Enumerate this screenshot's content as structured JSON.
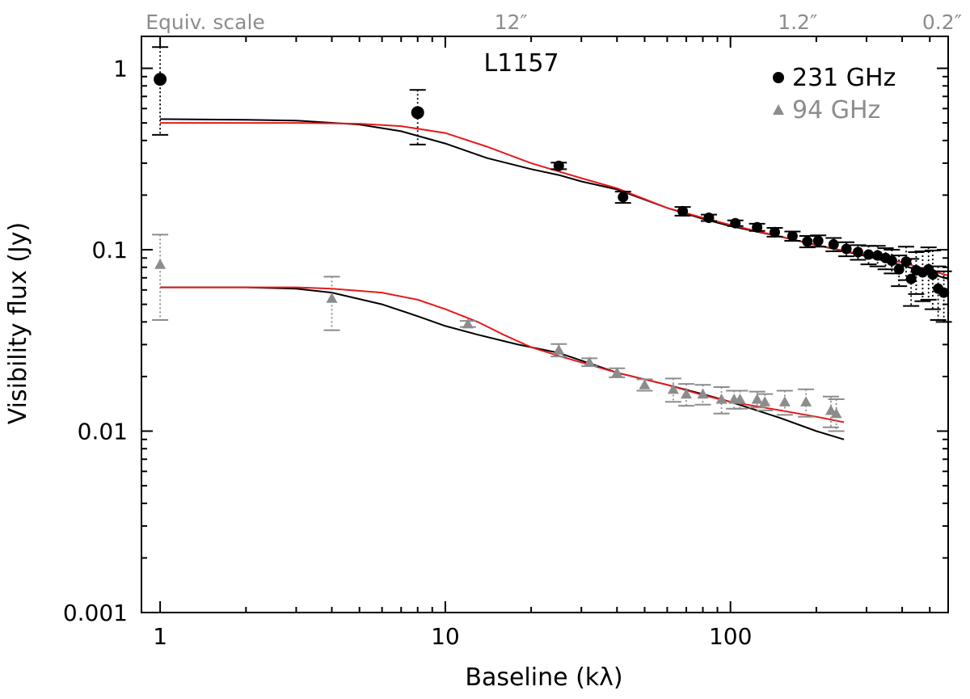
{
  "chart_data": {
    "type": "scatter",
    "title": "L1157",
    "xlabel": "Baseline (kλ)",
    "ylabel": "Visibility flux (Jy)",
    "xscale": "log",
    "yscale": "log",
    "xlim": [
      0.86,
      580
    ],
    "ylim": [
      0.001,
      1.5
    ],
    "x_ticks": [
      {
        "value": 1,
        "label": "1"
      },
      {
        "value": 10,
        "label": "10"
      },
      {
        "value": 100,
        "label": "100"
      }
    ],
    "y_ticks": [
      {
        "value": 0.001,
        "label": "0.001"
      },
      {
        "value": 0.01,
        "label": "0.01"
      },
      {
        "value": 0.1,
        "label": "0.1"
      },
      {
        "value": 1,
        "label": "1"
      }
    ],
    "top_axis": {
      "label": "Equiv. scale",
      "ticks": [
        {
          "value": 17,
          "label": "12″"
        },
        {
          "value": 172,
          "label": "1.2″"
        },
        {
          "value": 520,
          "label": "0.2″"
        }
      ]
    },
    "legend_position": "top-right",
    "colors": {
      "series_231": "#000000",
      "series_94": "#8c8c8c",
      "model_red": "#e41a1c",
      "model_black": "#000000"
    },
    "series": [
      {
        "name": "231 GHz",
        "marker": "circle",
        "x": [
          1,
          8,
          25,
          42,
          68,
          84,
          104,
          124,
          143,
          165,
          186,
          203,
          230,
          255,
          280,
          305,
          328,
          350,
          368,
          390,
          413,
          430,
          448,
          472,
          495,
          512,
          535,
          560
        ],
        "y": [
          0.87,
          0.57,
          0.29,
          0.195,
          0.163,
          0.15,
          0.14,
          0.133,
          0.125,
          0.119,
          0.111,
          0.112,
          0.107,
          0.101,
          0.097,
          0.094,
          0.093,
          0.09,
          0.087,
          0.078,
          0.086,
          0.069,
          0.077,
          0.075,
          0.078,
          0.073,
          0.061,
          0.058
        ],
        "err_low": [
          0.44,
          0.19,
          0.012,
          0.014,
          0.009,
          0.006,
          0.005,
          0.006,
          0.007,
          0.007,
          0.008,
          0.008,
          0.009,
          0.009,
          0.009,
          0.011,
          0.012,
          0.012,
          0.013,
          0.015,
          0.018,
          0.02,
          0.02,
          0.023,
          0.025,
          0.026,
          0.02,
          0.018
        ],
        "err_high": [
          0.44,
          0.19,
          0.012,
          0.014,
          0.009,
          0.006,
          0.005,
          0.006,
          0.007,
          0.007,
          0.008,
          0.008,
          0.009,
          0.009,
          0.009,
          0.011,
          0.012,
          0.012,
          0.013,
          0.015,
          0.018,
          0.02,
          0.02,
          0.023,
          0.025,
          0.026,
          0.02,
          0.018
        ]
      },
      {
        "name": "94 GHz",
        "marker": "triangle",
        "x": [
          1,
          4,
          12,
          25,
          32,
          40,
          50,
          63,
          70,
          80,
          93,
          103,
          108,
          124,
          132,
          155,
          184,
          225,
          235
        ],
        "y": [
          0.083,
          0.054,
          0.039,
          0.028,
          0.024,
          0.021,
          0.018,
          0.017,
          0.016,
          0.016,
          0.015,
          0.015,
          0.015,
          0.015,
          0.0145,
          0.0145,
          0.0145,
          0.013,
          0.0125
        ],
        "err_low": [
          0.042,
          0.018,
          0.0015,
          0.0022,
          0.0012,
          0.0012,
          0.0013,
          0.0025,
          0.0022,
          0.002,
          0.0025,
          0.0017,
          0.0017,
          0.0015,
          0.0015,
          0.0022,
          0.0025,
          0.0025,
          0.0025
        ],
        "err_high": [
          0.038,
          0.017,
          0.0015,
          0.0022,
          0.0012,
          0.0012,
          0.0013,
          0.0025,
          0.0022,
          0.002,
          0.0025,
          0.0017,
          0.0017,
          0.0015,
          0.0015,
          0.0022,
          0.0025,
          0.0025,
          0.0025
        ]
      }
    ],
    "models": [
      {
        "name": "model-231-black",
        "color": "black",
        "x": [
          1,
          2,
          3,
          5,
          7,
          10,
          14,
          20,
          25,
          30,
          40,
          60,
          80,
          100,
          150,
          200,
          300,
          400,
          500,
          580
        ],
        "y": [
          0.525,
          0.52,
          0.515,
          0.49,
          0.45,
          0.385,
          0.32,
          0.278,
          0.258,
          0.238,
          0.215,
          0.17,
          0.148,
          0.135,
          0.118,
          0.106,
          0.092,
          0.082,
          0.074,
          0.069
        ]
      },
      {
        "name": "model-231-red",
        "color": "red",
        "x": [
          1,
          2,
          3,
          5,
          7,
          10,
          14,
          20,
          25,
          30,
          40,
          60,
          80,
          100,
          150,
          200,
          300,
          400,
          500,
          580
        ],
        "y": [
          0.5,
          0.5,
          0.5,
          0.495,
          0.48,
          0.44,
          0.37,
          0.3,
          0.27,
          0.248,
          0.218,
          0.17,
          0.15,
          0.137,
          0.118,
          0.106,
          0.093,
          0.085,
          0.077,
          0.072
        ]
      },
      {
        "name": "model-94-black",
        "color": "black",
        "x": [
          1,
          2,
          3,
          4,
          6,
          8,
          10,
          13,
          18,
          25,
          40,
          60,
          80,
          100,
          150,
          200,
          250
        ],
        "y": [
          0.062,
          0.062,
          0.061,
          0.058,
          0.05,
          0.043,
          0.038,
          0.034,
          0.03,
          0.027,
          0.021,
          0.018,
          0.016,
          0.0145,
          0.0118,
          0.01,
          0.009
        ]
      },
      {
        "name": "model-94-red",
        "color": "red",
        "x": [
          1,
          2,
          3,
          4,
          6,
          8,
          10,
          13,
          16,
          20,
          25,
          40,
          60,
          80,
          100,
          150,
          200,
          250
        ],
        "y": [
          0.062,
          0.062,
          0.062,
          0.061,
          0.058,
          0.053,
          0.047,
          0.04,
          0.034,
          0.029,
          0.026,
          0.021,
          0.018,
          0.0158,
          0.0145,
          0.013,
          0.012,
          0.0112
        ]
      }
    ],
    "legend": [
      {
        "name": "231 GHz",
        "marker": "circle",
        "color": "#000000"
      },
      {
        "name": "94 GHz",
        "marker": "triangle",
        "color": "#8c8c8c"
      }
    ]
  }
}
